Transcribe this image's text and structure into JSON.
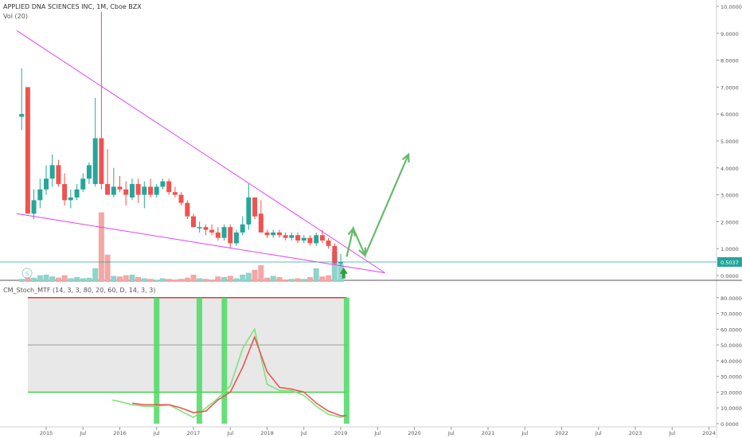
{
  "header": {
    "symbol_line": "APPLIED DNA SCIENCES INC, 1M, Cboe BZX",
    "volume_label": "Vol (20)",
    "indicator_label": "CM_Stoch_MTF (14, 3, 3, 80, 20, 60, D, 14, 3, 3)",
    "watermark_glyph": "S"
  },
  "colors": {
    "up": "#26a69a",
    "down": "#ef5350",
    "up_volume": "#8fd3cc",
    "down_volume": "#f4a7a5",
    "trendline": "#e040fb",
    "projection": "#66bb6a",
    "signal_band": "#4cd964",
    "stoch_k": "#7ee37a",
    "stoch_d": "#ef5350",
    "price_tag": "#26a69a",
    "band_fill": "#e8e8e8"
  },
  "chart_data": [
    {
      "type": "candlestick",
      "title": "APPLIED DNA SCIENCES INC, 1M, Cboe BZX",
      "interval": "1M",
      "y_scale": "linear",
      "ylim": [
        0,
        10
      ],
      "y_ticks": [
        "0.0000",
        "1.0000",
        "2.0000",
        "3.0000",
        "4.0000",
        "5.0000",
        "6.0000",
        "7.0000",
        "8.0000",
        "9.0000",
        "10.0000"
      ],
      "x_ticks": [
        {
          "label": "2015",
          "t": 2015.0
        },
        {
          "label": "Jul",
          "t": 2015.5
        },
        {
          "label": "2016",
          "t": 2016.0
        },
        {
          "label": "Jul",
          "t": 2016.5
        },
        {
          "label": "2017",
          "t": 2017.0
        },
        {
          "label": "Jul",
          "t": 2017.5
        },
        {
          "label": "2018",
          "t": 2018.0
        },
        {
          "label": "Jul",
          "t": 2018.5
        },
        {
          "label": "2019",
          "t": 2019.0
        },
        {
          "label": "Jul",
          "t": 2019.5
        },
        {
          "label": "2020",
          "t": 2020.0
        },
        {
          "label": "Jul",
          "t": 2020.5
        },
        {
          "label": "2021",
          "t": 2021.0
        },
        {
          "label": "Jul",
          "t": 2021.5
        },
        {
          "label": "2022",
          "t": 2022.0
        },
        {
          "label": "Jul",
          "t": 2022.5
        },
        {
          "label": "2023",
          "t": 2023.0
        },
        {
          "label": "Jul",
          "t": 2023.5
        },
        {
          "label": "2024",
          "t": 2024.0
        }
      ],
      "last_price": "0.5037",
      "candles": [
        {
          "t": 2014.667,
          "o": 5.9,
          "h": 7.7,
          "l": 5.4,
          "c": 6.0
        },
        {
          "t": 2014.75,
          "o": 7.0,
          "h": 7.0,
          "l": 2.3,
          "c": 2.3
        },
        {
          "t": 2014.833,
          "o": 2.3,
          "h": 3.2,
          "l": 2.1,
          "c": 2.8
        },
        {
          "t": 2014.917,
          "o": 2.8,
          "h": 3.6,
          "l": 2.5,
          "c": 3.2
        },
        {
          "t": 2015.0,
          "o": 3.2,
          "h": 4.1,
          "l": 3.0,
          "c": 3.6
        },
        {
          "t": 2015.083,
          "o": 3.6,
          "h": 4.5,
          "l": 3.3,
          "c": 4.1
        },
        {
          "t": 2015.167,
          "o": 4.1,
          "h": 4.3,
          "l": 3.3,
          "c": 3.4
        },
        {
          "t": 2015.25,
          "o": 3.4,
          "h": 3.8,
          "l": 2.6,
          "c": 2.8
        },
        {
          "t": 2015.333,
          "o": 2.8,
          "h": 3.2,
          "l": 2.5,
          "c": 2.9
        },
        {
          "t": 2015.417,
          "o": 2.9,
          "h": 3.4,
          "l": 2.8,
          "c": 3.2
        },
        {
          "t": 2015.5,
          "o": 3.2,
          "h": 3.8,
          "l": 3.1,
          "c": 3.6
        },
        {
          "t": 2015.583,
          "o": 3.6,
          "h": 4.2,
          "l": 3.4,
          "c": 4.1
        },
        {
          "t": 2015.667,
          "o": 3.4,
          "h": 6.6,
          "l": 3.3,
          "c": 5.1
        },
        {
          "t": 2015.75,
          "o": 5.1,
          "h": 9.8,
          "l": 3.2,
          "c": 3.4
        },
        {
          "t": 2015.833,
          "o": 3.4,
          "h": 4.7,
          "l": 3.0,
          "c": 3.0
        },
        {
          "t": 2015.917,
          "o": 3.0,
          "h": 4.0,
          "l": 2.9,
          "c": 3.3
        },
        {
          "t": 2016.0,
          "o": 3.3,
          "h": 3.7,
          "l": 3.1,
          "c": 3.2
        },
        {
          "t": 2016.083,
          "o": 3.2,
          "h": 3.5,
          "l": 2.6,
          "c": 3.0
        },
        {
          "t": 2016.167,
          "o": 2.9,
          "h": 3.6,
          "l": 2.8,
          "c": 3.4
        },
        {
          "t": 2016.25,
          "o": 3.4,
          "h": 3.6,
          "l": 2.7,
          "c": 3.0
        },
        {
          "t": 2016.333,
          "o": 3.0,
          "h": 3.5,
          "l": 2.5,
          "c": 3.3
        },
        {
          "t": 2016.417,
          "o": 3.3,
          "h": 3.6,
          "l": 2.9,
          "c": 3.0
        },
        {
          "t": 2016.5,
          "o": 3.0,
          "h": 3.4,
          "l": 2.9,
          "c": 3.3
        },
        {
          "t": 2016.583,
          "o": 3.3,
          "h": 3.6,
          "l": 3.2,
          "c": 3.5
        },
        {
          "t": 2016.667,
          "o": 3.5,
          "h": 3.6,
          "l": 3.0,
          "c": 3.1
        },
        {
          "t": 2016.75,
          "o": 3.1,
          "h": 3.3,
          "l": 2.9,
          "c": 3.0
        },
        {
          "t": 2016.833,
          "o": 3.0,
          "h": 3.1,
          "l": 2.6,
          "c": 2.7
        },
        {
          "t": 2016.917,
          "o": 2.7,
          "h": 2.8,
          "l": 2.1,
          "c": 2.2
        },
        {
          "t": 2017.0,
          "o": 2.2,
          "h": 2.3,
          "l": 1.8,
          "c": 1.8
        },
        {
          "t": 2017.083,
          "o": 1.8,
          "h": 2.0,
          "l": 1.6,
          "c": 1.8
        },
        {
          "t": 2017.167,
          "o": 1.8,
          "h": 1.9,
          "l": 1.5,
          "c": 1.7
        },
        {
          "t": 2017.25,
          "o": 1.7,
          "h": 1.9,
          "l": 1.5,
          "c": 1.6
        },
        {
          "t": 2017.333,
          "o": 1.6,
          "h": 1.8,
          "l": 1.3,
          "c": 1.4
        },
        {
          "t": 2017.417,
          "o": 1.4,
          "h": 1.9,
          "l": 1.3,
          "c": 1.8
        },
        {
          "t": 2017.5,
          "o": 1.8,
          "h": 1.9,
          "l": 1.0,
          "c": 1.2
        },
        {
          "t": 2017.583,
          "o": 1.2,
          "h": 1.7,
          "l": 1.1,
          "c": 1.6
        },
        {
          "t": 2017.667,
          "o": 1.6,
          "h": 2.2,
          "l": 1.5,
          "c": 1.9
        },
        {
          "t": 2017.75,
          "o": 1.9,
          "h": 3.4,
          "l": 1.7,
          "c": 2.9
        },
        {
          "t": 2017.833,
          "o": 2.9,
          "h": 2.9,
          "l": 2.1,
          "c": 2.2
        },
        {
          "t": 2017.917,
          "o": 2.3,
          "h": 2.8,
          "l": 1.6,
          "c": 1.6
        },
        {
          "t": 2018.0,
          "o": 1.6,
          "h": 1.7,
          "l": 1.4,
          "c": 1.5
        },
        {
          "t": 2018.083,
          "o": 1.5,
          "h": 1.7,
          "l": 1.4,
          "c": 1.6
        },
        {
          "t": 2018.167,
          "o": 1.6,
          "h": 1.7,
          "l": 1.4,
          "c": 1.5
        },
        {
          "t": 2018.25,
          "o": 1.5,
          "h": 1.6,
          "l": 1.3,
          "c": 1.4
        },
        {
          "t": 2018.333,
          "o": 1.4,
          "h": 1.6,
          "l": 1.3,
          "c": 1.5
        },
        {
          "t": 2018.417,
          "o": 1.5,
          "h": 1.6,
          "l": 1.2,
          "c": 1.3
        },
        {
          "t": 2018.5,
          "o": 1.3,
          "h": 1.5,
          "l": 1.2,
          "c": 1.4
        },
        {
          "t": 2018.583,
          "o": 1.4,
          "h": 1.5,
          "l": 1.1,
          "c": 1.2
        },
        {
          "t": 2018.667,
          "o": 1.2,
          "h": 1.6,
          "l": 1.1,
          "c": 1.5
        },
        {
          "t": 2018.75,
          "o": 1.5,
          "h": 1.7,
          "l": 1.2,
          "c": 1.3
        },
        {
          "t": 2018.833,
          "o": 1.3,
          "h": 1.4,
          "l": 1.0,
          "c": 1.1
        },
        {
          "t": 2018.917,
          "o": 1.1,
          "h": 1.2,
          "l": 0.4,
          "c": 0.45
        },
        {
          "t": 2019.0,
          "o": 0.45,
          "h": 0.8,
          "l": 0.35,
          "c": 0.5
        }
      ],
      "volumes": [
        {
          "t": 2014.667,
          "v": 0.1,
          "dir": "up"
        },
        {
          "t": 2014.75,
          "v": 0.16,
          "dir": "down"
        },
        {
          "t": 2014.833,
          "v": 0.14,
          "dir": "up"
        },
        {
          "t": 2014.917,
          "v": 0.22,
          "dir": "up"
        },
        {
          "t": 2015.0,
          "v": 0.24,
          "dir": "up"
        },
        {
          "t": 2015.083,
          "v": 0.18,
          "dir": "up"
        },
        {
          "t": 2015.167,
          "v": 0.14,
          "dir": "down"
        },
        {
          "t": 2015.25,
          "v": 0.22,
          "dir": "down"
        },
        {
          "t": 2015.333,
          "v": 0.12,
          "dir": "up"
        },
        {
          "t": 2015.417,
          "v": 0.16,
          "dir": "up"
        },
        {
          "t": 2015.5,
          "v": 0.12,
          "dir": "up"
        },
        {
          "t": 2015.583,
          "v": 0.14,
          "dir": "up"
        },
        {
          "t": 2015.667,
          "v": 0.45,
          "dir": "up"
        },
        {
          "t": 2015.75,
          "v": 2.3,
          "dir": "down"
        },
        {
          "t": 2015.833,
          "v": 0.9,
          "dir": "down"
        },
        {
          "t": 2015.917,
          "v": 0.2,
          "dir": "up"
        },
        {
          "t": 2016.0,
          "v": 0.18,
          "dir": "down"
        },
        {
          "t": 2016.083,
          "v": 0.22,
          "dir": "down"
        },
        {
          "t": 2016.167,
          "v": 0.24,
          "dir": "up"
        },
        {
          "t": 2016.25,
          "v": 0.16,
          "dir": "down"
        },
        {
          "t": 2016.333,
          "v": 0.12,
          "dir": "up"
        },
        {
          "t": 2016.417,
          "v": 0.1,
          "dir": "down"
        },
        {
          "t": 2016.5,
          "v": 0.06,
          "dir": "up"
        },
        {
          "t": 2016.583,
          "v": 0.12,
          "dir": "up"
        },
        {
          "t": 2016.667,
          "v": 0.1,
          "dir": "down"
        },
        {
          "t": 2016.75,
          "v": 0.08,
          "dir": "down"
        },
        {
          "t": 2016.833,
          "v": 0.1,
          "dir": "down"
        },
        {
          "t": 2016.917,
          "v": 0.14,
          "dir": "down"
        },
        {
          "t": 2017.0,
          "v": 0.24,
          "dir": "down"
        },
        {
          "t": 2017.083,
          "v": 0.12,
          "dir": "up"
        },
        {
          "t": 2017.167,
          "v": 0.1,
          "dir": "down"
        },
        {
          "t": 2017.25,
          "v": 0.08,
          "dir": "down"
        },
        {
          "t": 2017.333,
          "v": 0.18,
          "dir": "down"
        },
        {
          "t": 2017.417,
          "v": 0.16,
          "dir": "up"
        },
        {
          "t": 2017.5,
          "v": 0.2,
          "dir": "down"
        },
        {
          "t": 2017.583,
          "v": 0.12,
          "dir": "up"
        },
        {
          "t": 2017.667,
          "v": 0.24,
          "dir": "up"
        },
        {
          "t": 2017.75,
          "v": 0.3,
          "dir": "up"
        },
        {
          "t": 2017.833,
          "v": 0.4,
          "dir": "down"
        },
        {
          "t": 2017.917,
          "v": 0.55,
          "dir": "down"
        },
        {
          "t": 2018.0,
          "v": 0.14,
          "dir": "down"
        },
        {
          "t": 2018.083,
          "v": 0.2,
          "dir": "up"
        },
        {
          "t": 2018.167,
          "v": 0.16,
          "dir": "down"
        },
        {
          "t": 2018.25,
          "v": 0.08,
          "dir": "down"
        },
        {
          "t": 2018.333,
          "v": 0.1,
          "dir": "up"
        },
        {
          "t": 2018.417,
          "v": 0.12,
          "dir": "down"
        },
        {
          "t": 2018.5,
          "v": 0.1,
          "dir": "up"
        },
        {
          "t": 2018.583,
          "v": 0.16,
          "dir": "down"
        },
        {
          "t": 2018.667,
          "v": 0.45,
          "dir": "up"
        },
        {
          "t": 2018.75,
          "v": 0.18,
          "dir": "down"
        },
        {
          "t": 2018.833,
          "v": 0.22,
          "dir": "down"
        },
        {
          "t": 2018.917,
          "v": 1.0,
          "dir": "up"
        },
        {
          "t": 2019.0,
          "v": 0.6,
          "dir": "up"
        }
      ],
      "trendlines": [
        {
          "name": "upper",
          "from": {
            "t": 2014.6,
            "p": 9.1
          },
          "to": {
            "t": 2019.6,
            "p": 0.1
          }
        },
        {
          "name": "lower",
          "from": {
            "t": 2014.6,
            "p": 2.3
          },
          "to": {
            "t": 2019.6,
            "p": 0.1
          }
        }
      ],
      "projection_path": [
        {
          "t": 2019.08,
          "p": 0.7
        },
        {
          "t": 2019.17,
          "p": 1.75
        },
        {
          "t": 2019.33,
          "p": 0.75
        },
        {
          "t": 2019.92,
          "p": 4.5
        }
      ],
      "arrow_up": {
        "t": 2019.04,
        "p": -0.05
      }
    },
    {
      "type": "line",
      "title": "CM_Stoch_MTF (14, 3, 3, 80, 20, 60, D, 14, 3, 3)",
      "ylim": [
        0,
        90
      ],
      "y_ticks": [
        "0.0000",
        "10.0000",
        "20.0000",
        "30.0000",
        "40.0000",
        "50.0000",
        "60.0000",
        "70.0000",
        "80.0000"
      ],
      "levels": {
        "upper": 80,
        "mid": 50,
        "lower": 20
      },
      "band": {
        "from": 2014.75,
        "to": 2019.08
      },
      "signals": [
        2016.5,
        2017.08,
        2017.42,
        2019.08
      ],
      "series": [
        {
          "name": "K",
          "x": [
            2015.9,
            2016.0,
            2016.17,
            2016.33,
            2016.5,
            2016.67,
            2016.83,
            2017.0,
            2017.17,
            2017.33,
            2017.5,
            2017.67,
            2017.83,
            2018.0,
            2018.17,
            2018.33,
            2018.5,
            2018.67,
            2018.83,
            2019.0,
            2019.08
          ],
          "values": [
            15,
            14,
            12,
            11,
            11,
            12,
            8,
            4,
            10,
            16,
            24,
            48,
            60,
            25,
            21,
            21,
            18,
            11,
            6,
            4,
            5
          ]
        },
        {
          "name": "D",
          "x": [
            2016.17,
            2016.33,
            2016.5,
            2016.67,
            2016.83,
            2017.0,
            2017.17,
            2017.33,
            2017.5,
            2017.67,
            2017.83,
            2018.0,
            2018.17,
            2018.33,
            2018.5,
            2018.67,
            2018.83,
            2019.0,
            2019.08
          ],
          "values": [
            13,
            12,
            12,
            12,
            10,
            7,
            8,
            15,
            20,
            36,
            55,
            33,
            23,
            22,
            20,
            13,
            8,
            5,
            5
          ]
        }
      ]
    }
  ]
}
